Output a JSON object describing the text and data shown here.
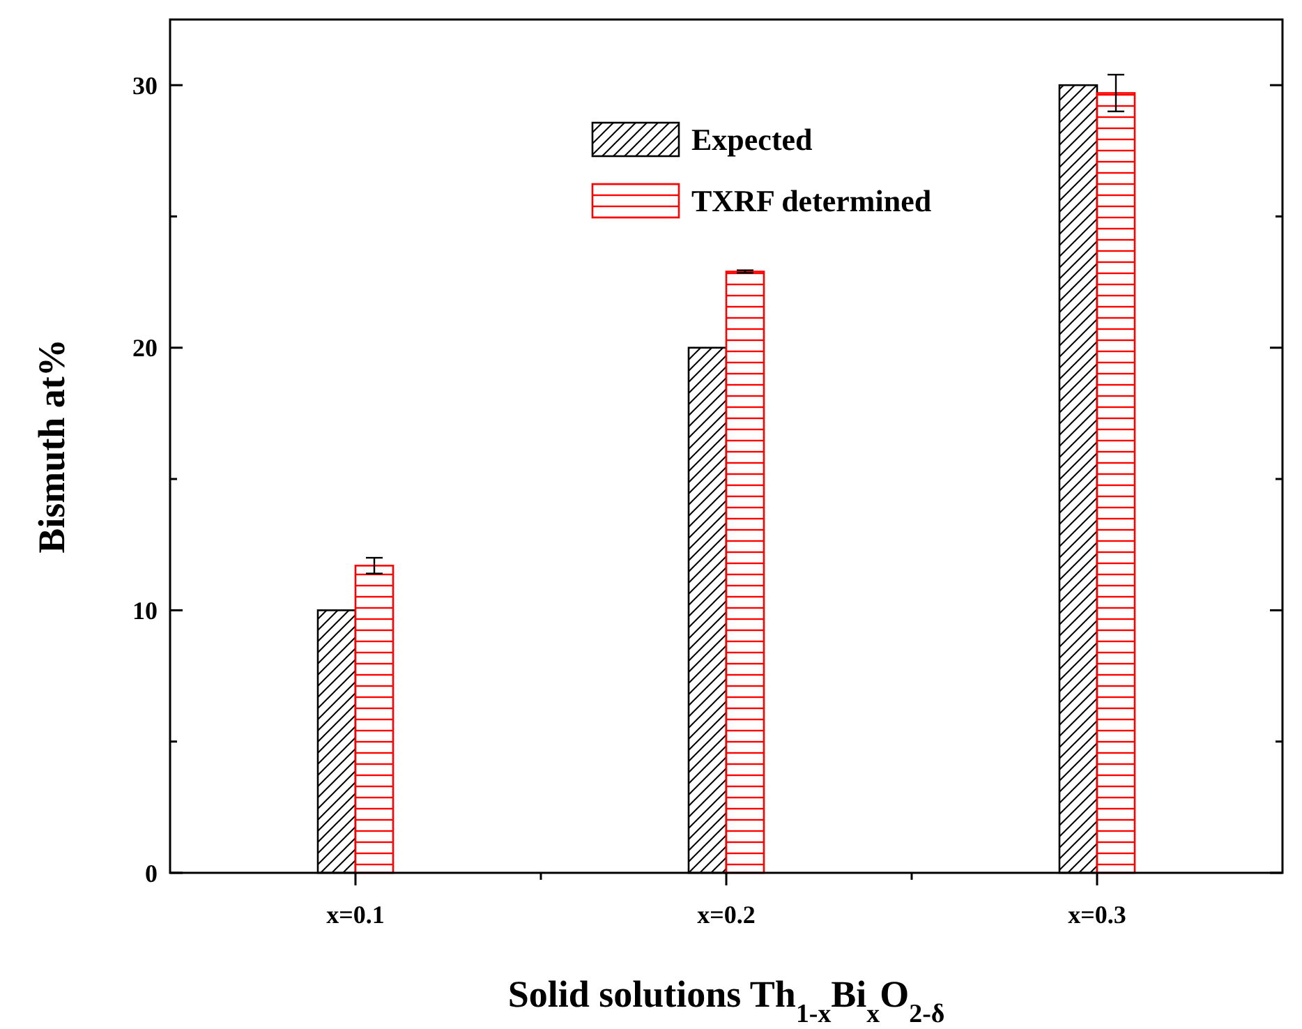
{
  "chart_data": {
    "type": "bar",
    "xlabel": "Solid solutions Th$_{1-x}$Bi$_{x}$O$_{2-δ}$",
    "ylabel": "Bismuth at%",
    "categories": [
      "x=0.1",
      "x=0.2",
      "x=0.3"
    ],
    "series": [
      {
        "name": "Expected",
        "color": "#000000",
        "values": [
          10,
          20,
          30
        ]
      },
      {
        "name": "TXRF determined",
        "color": "#ff0000",
        "values": [
          11.7,
          22.9,
          29.7
        ],
        "errors": [
          0.3,
          0.05,
          0.7
        ]
      }
    ],
    "ylim": [
      0,
      32.5
    ],
    "yticks": [
      0,
      {
        "value": 5,
        "label": null
      },
      10,
      {
        "value": 15,
        "label": null
      },
      20,
      {
        "value": 25,
        "label": null
      },
      30
    ],
    "legend": "top",
    "grid": false
  }
}
